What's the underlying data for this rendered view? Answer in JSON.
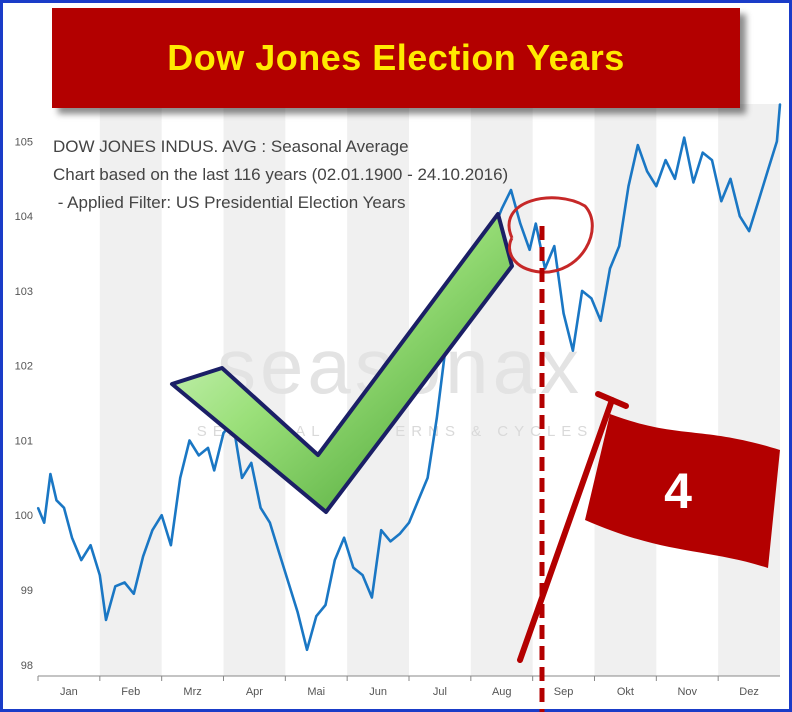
{
  "banner": {
    "title": "Dow Jones Election Years"
  },
  "info": {
    "line1": "DOW JONES INDUS. AVG : Seasonal Average",
    "line2": "Chart based on the last 116 years (02.01.1900 - 24.10.2016)",
    "line3": " - Applied Filter: US Presidential Election Years"
  },
  "watermark": {
    "brand": "seasonax",
    "tagline": "SEASONAL PATTERNS & CYCLES"
  },
  "flag": {
    "label": "4"
  },
  "colors": {
    "line": "#1a77c4",
    "banner": "#b30000",
    "banner_text": "#ffea00",
    "frame": "#1a3cc8",
    "flag": "#b30000",
    "marker": "#b30000"
  },
  "chart_data": {
    "type": "line",
    "title": "DOW JONES INDUS. AVG : Seasonal Average",
    "xlabel": "",
    "ylabel": "",
    "ylim": [
      97.85,
      105.5
    ],
    "yticks": [
      98,
      99,
      100,
      101,
      102,
      103,
      104,
      105
    ],
    "months": [
      "Jan",
      "Feb",
      "Mrz",
      "Apr",
      "Mai",
      "Jun",
      "Jul",
      "Aug",
      "Sep",
      "Okt",
      "Nov",
      "Dez"
    ],
    "grid": "alternating month bands",
    "x_unit": "month index (0 = start of Jan, 12 = end of Dez)",
    "x": [
      0.0,
      0.1,
      0.2,
      0.3,
      0.42,
      0.55,
      0.7,
      0.85,
      1.0,
      1.1,
      1.25,
      1.4,
      1.55,
      1.7,
      1.85,
      2.0,
      2.15,
      2.3,
      2.45,
      2.6,
      2.75,
      2.85,
      3.0,
      3.15,
      3.3,
      3.45,
      3.6,
      3.75,
      3.9,
      4.05,
      4.2,
      4.35,
      4.5,
      4.65,
      4.8,
      4.95,
      5.1,
      5.25,
      5.4,
      5.55,
      5.7,
      5.85,
      6.0,
      6.15,
      6.3,
      6.45,
      6.6,
      6.75,
      6.9,
      7.05,
      7.2,
      7.35,
      7.5,
      7.65,
      7.8,
      7.95,
      8.05,
      8.2,
      8.35,
      8.5,
      8.65,
      8.8,
      8.95,
      9.1,
      9.25,
      9.4,
      9.55,
      9.7,
      9.85,
      10.0,
      10.15,
      10.3,
      10.45,
      10.6,
      10.75,
      10.9,
      11.05,
      11.2,
      11.35,
      11.5,
      11.65,
      11.8,
      11.95,
      12.0
    ],
    "y": [
      100.1,
      99.9,
      100.55,
      100.2,
      100.1,
      99.7,
      99.4,
      99.6,
      99.2,
      98.6,
      99.05,
      99.1,
      98.95,
      99.45,
      99.8,
      100.0,
      99.6,
      100.5,
      101.0,
      100.8,
      100.9,
      100.6,
      101.1,
      101.25,
      100.5,
      100.7,
      100.1,
      99.9,
      99.5,
      99.1,
      98.7,
      98.2,
      98.65,
      98.8,
      99.4,
      99.7,
      99.3,
      99.2,
      98.9,
      99.8,
      99.65,
      99.75,
      99.9,
      100.2,
      100.5,
      101.3,
      102.3,
      102.8,
      103.0,
      103.25,
      103.5,
      103.8,
      104.1,
      104.35,
      103.9,
      103.55,
      103.9,
      103.3,
      103.6,
      102.7,
      102.2,
      103.0,
      102.9,
      102.6,
      103.3,
      103.6,
      104.4,
      104.95,
      104.6,
      104.4,
      104.75,
      104.5,
      105.05,
      104.45,
      104.85,
      104.75,
      104.2,
      104.5,
      104.0,
      103.8,
      104.2,
      104.6,
      105.0,
      105.5
    ]
  }
}
